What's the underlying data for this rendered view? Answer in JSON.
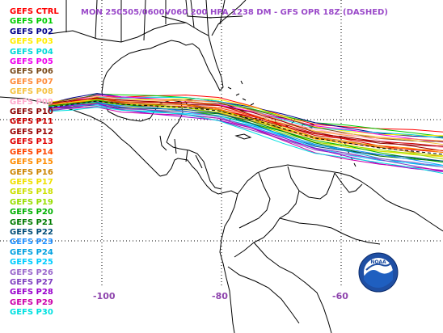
{
  "title": "MON 250505/0600V060  200 HPA 1238 DM - GFS OPR 18Z (DASHED)",
  "legend": [
    {
      "label": "GEFS CTRL",
      "color": "#ff0000"
    },
    {
      "label": "GEFS P01",
      "color": "#00cc00"
    },
    {
      "label": "GEFS P02",
      "color": "#00008b"
    },
    {
      "label": "GEFS P03",
      "color": "#ffee00"
    },
    {
      "label": "GEFS P04",
      "color": "#00d8d8"
    },
    {
      "label": "GEFS P05",
      "color": "#ee00ee"
    },
    {
      "label": "GEFS P06",
      "color": "#7a4a1a"
    },
    {
      "label": "GEFS P07",
      "color": "#ff8c3a"
    },
    {
      "label": "GEFS P08",
      "color": "#f5c242"
    },
    {
      "label": "GEFS P09",
      "color": "#ffaacc"
    },
    {
      "label": "GEFS P10",
      "color": "#8b0000"
    },
    {
      "label": "GEFS P11",
      "color": "#cc0000"
    },
    {
      "label": "GEFS P12",
      "color": "#990000"
    },
    {
      "label": "GEFS P13",
      "color": "#e00000"
    },
    {
      "label": "GEFS P14",
      "color": "#ff4500"
    },
    {
      "label": "GEFS P15",
      "color": "#ff8c00"
    },
    {
      "label": "GEFS P16",
      "color": "#cc8400"
    },
    {
      "label": "GEFS P17",
      "color": "#f0e000"
    },
    {
      "label": "GEFS P18",
      "color": "#cce000"
    },
    {
      "label": "GEFS P19",
      "color": "#99dd00"
    },
    {
      "label": "GEFS P20",
      "color": "#00b000"
    },
    {
      "label": "GEFS P21",
      "color": "#007a00"
    },
    {
      "label": "GEFS P22",
      "color": "#004d7a"
    },
    {
      "label": "GEFS P23",
      "color": "#1e90ff"
    },
    {
      "label": "GEFS P24",
      "color": "#00a0e0"
    },
    {
      "label": "GEFS P25",
      "color": "#00ccff"
    },
    {
      "label": "GEFS P26",
      "color": "#9966cc"
    },
    {
      "label": "GEFS P27",
      "color": "#8040c0"
    },
    {
      "label": "GEFS P28",
      "color": "#9900cc"
    },
    {
      "label": "GEFS P29",
      "color": "#cc00aa"
    },
    {
      "label": "GEFS P30",
      "color": "#00e0e0"
    }
  ],
  "longitude_labels": [
    "-100",
    "-80",
    "-60"
  ],
  "logo_text": "NOAA"
}
